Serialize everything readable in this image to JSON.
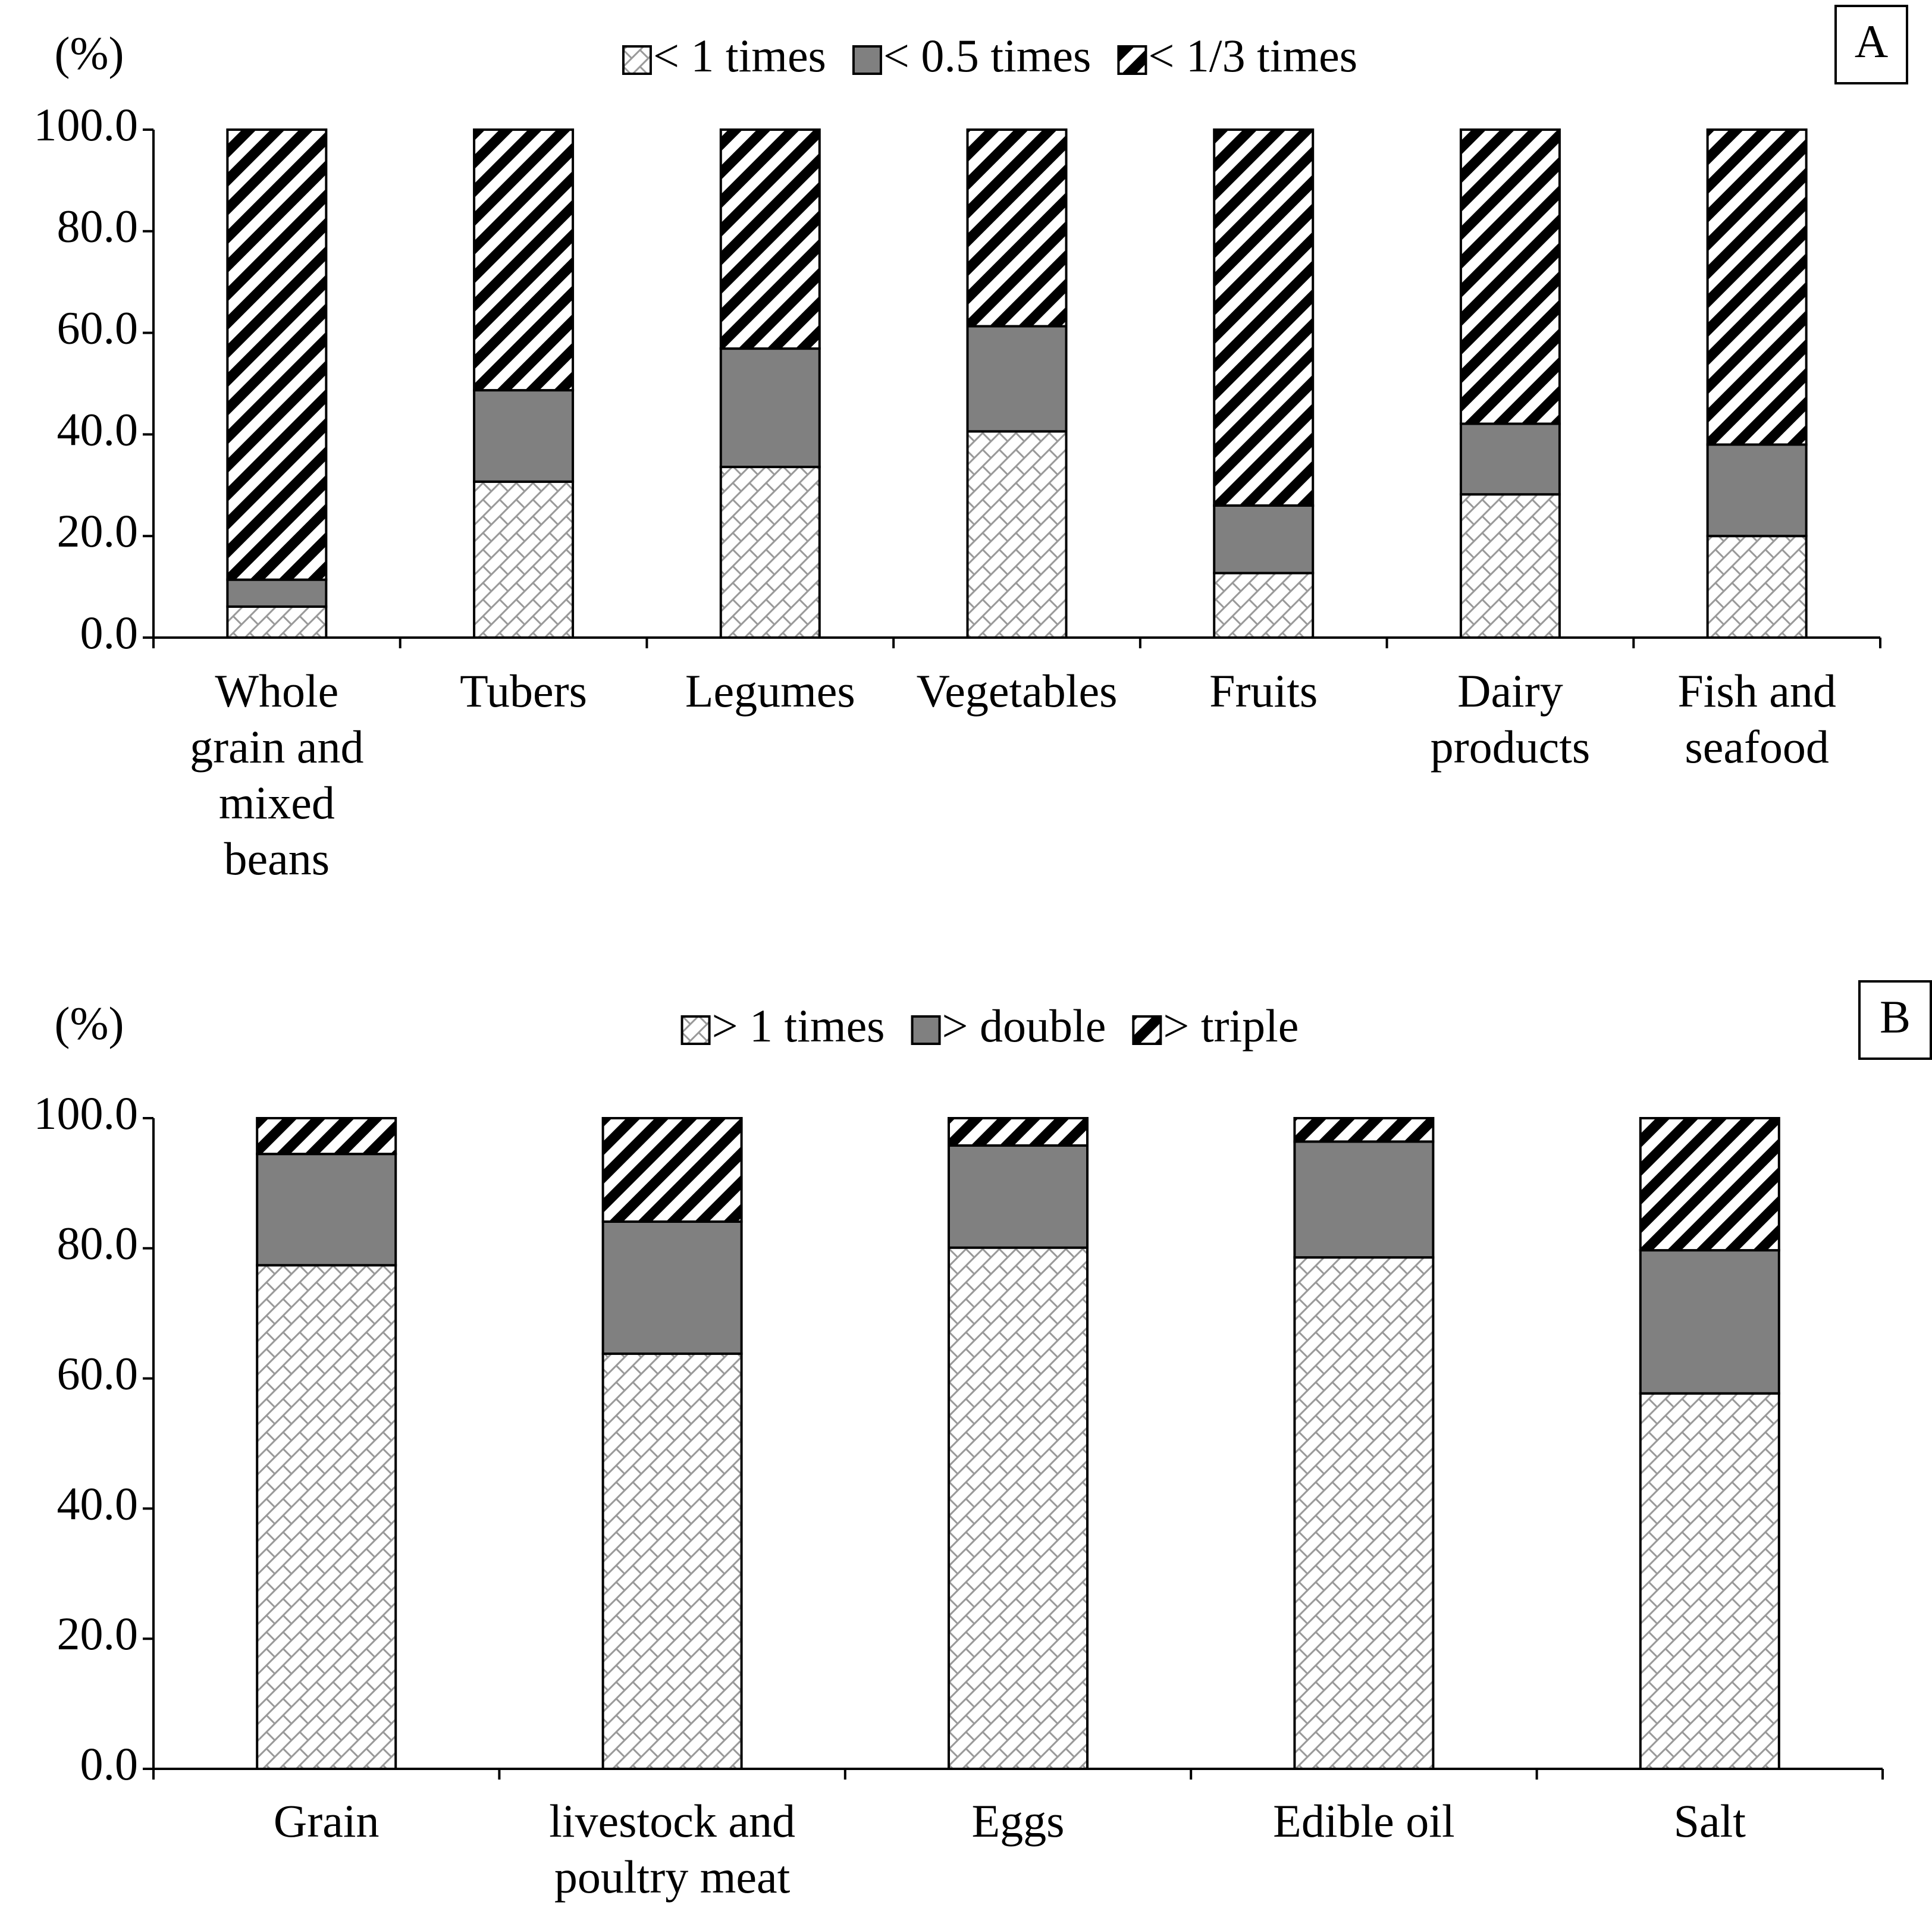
{
  "chart_data": [
    {
      "type": "stacked-bar",
      "panel": "A",
      "y_label": "(%)",
      "categories": [
        "Whole grain and mixed beans",
        "Tubers",
        "Legumes",
        "Vegetables",
        "Fruits",
        "Dairy products",
        "Fish and seafood"
      ],
      "series": [
        {
          "name": "< 1 times",
          "color": "#ffffff",
          "pattern": "hatch",
          "values": [
            6.1,
            30.7,
            33.6,
            40.6,
            12.7,
            28.2,
            20.0
          ]
        },
        {
          "name": "< 0.5 times",
          "color": "#808080",
          "pattern": "solid",
          "values": [
            5.3,
            18.0,
            23.3,
            20.7,
            13.3,
            13.9,
            18.0
          ]
        },
        {
          "name": "< 1/3 times",
          "color": "#000000",
          "pattern": "stripes",
          "values": [
            88.6,
            51.3,
            43.1,
            38.7,
            74.0,
            57.9,
            62.0
          ]
        }
      ],
      "ylim": [
        0,
        100
      ],
      "yticks": [
        {
          "value": 0,
          "label": "0.0"
        },
        {
          "value": 20,
          "label": "20.0"
        },
        {
          "value": 40,
          "label": "40.0"
        },
        {
          "value": 60,
          "label": "60.0"
        },
        {
          "value": 80,
          "label": "80.0"
        },
        {
          "value": 100,
          "label": "100.0"
        }
      ],
      "legend": "top"
    },
    {
      "type": "stacked-bar",
      "panel": "B",
      "y_label": "(%)",
      "categories": [
        "Grain",
        "livestock and poultry meat",
        "Eggs",
        "Edible oil",
        "Salt"
      ],
      "series": [
        {
          "name": "> 1 times",
          "color": "#ffffff",
          "pattern": "hatch",
          "values": [
            77.4,
            63.8,
            80.1,
            78.6,
            57.7
          ]
        },
        {
          "name": "> double",
          "color": "#808080",
          "pattern": "solid",
          "values": [
            17.1,
            20.3,
            15.7,
            17.8,
            22.0
          ]
        },
        {
          "name": "> triple",
          "color": "#000000",
          "pattern": "stripes",
          "values": [
            5.5,
            15.9,
            4.2,
            3.6,
            20.3
          ]
        }
      ],
      "ylim": [
        0,
        100
      ],
      "yticks": [
        {
          "value": 0,
          "label": "0.0"
        },
        {
          "value": 20,
          "label": "20.0"
        },
        {
          "value": 40,
          "label": "40.0"
        },
        {
          "value": 60,
          "label": "60.0"
        },
        {
          "value": 80,
          "label": "80.0"
        },
        {
          "value": 100,
          "label": "100.0"
        }
      ],
      "legend": "top"
    }
  ]
}
